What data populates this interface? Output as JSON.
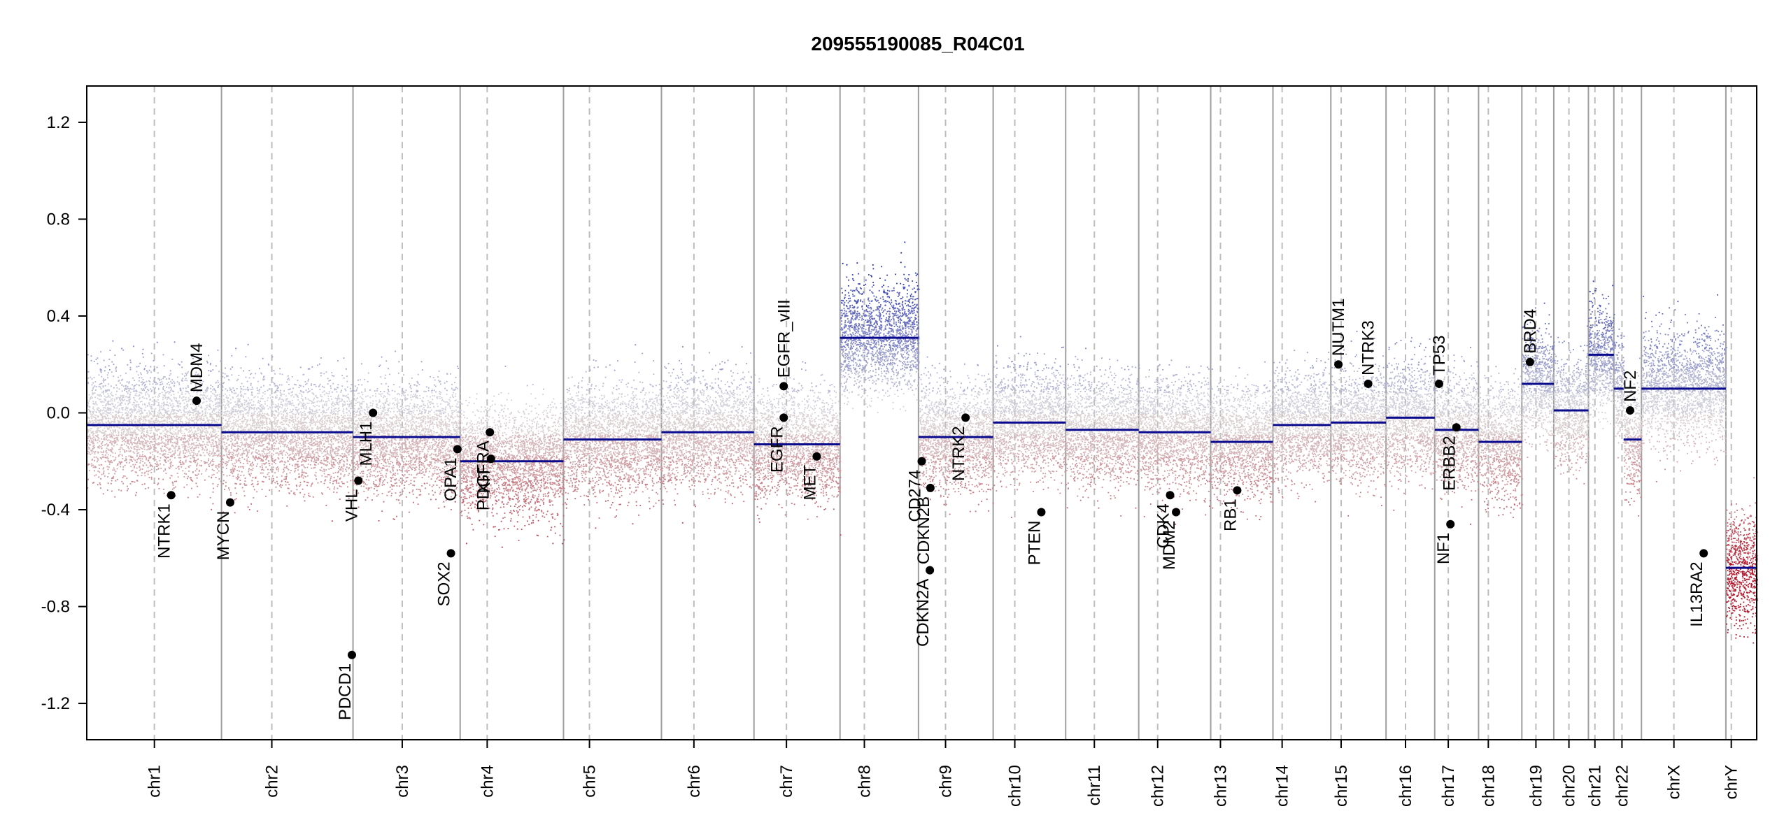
{
  "chart_data": {
    "type": "scatter",
    "title": "209555190085_R04C01",
    "xlabel": "",
    "ylabel": "",
    "ylim": [
      -1.35,
      1.35
    ],
    "grid": false,
    "yticks": [
      -1.2,
      -0.8,
      -0.4,
      0.0,
      0.4,
      0.8,
      1.2
    ],
    "ytick_labels": [
      "-1.2",
      "-0.8",
      "-0.4",
      "0.0",
      "0.4",
      "0.8",
      "1.2"
    ],
    "chromosomes": [
      {
        "name": "chr1",
        "start": 0,
        "end": 249,
        "centromere": 125
      },
      {
        "name": "chr2",
        "start": 249,
        "end": 492,
        "centromere": 93
      },
      {
        "name": "chr3",
        "start": 492,
        "end": 690,
        "centromere": 91
      },
      {
        "name": "chr4",
        "start": 690,
        "end": 881,
        "centromere": 50
      },
      {
        "name": "chr5",
        "start": 881,
        "end": 1062,
        "centromere": 48
      },
      {
        "name": "chr6",
        "start": 1062,
        "end": 1233,
        "centromere": 60
      },
      {
        "name": "chr7",
        "start": 1233,
        "end": 1392,
        "centromere": 60
      },
      {
        "name": "chr8",
        "start": 1392,
        "end": 1537,
        "centromere": 45
      },
      {
        "name": "chr9",
        "start": 1537,
        "end": 1675,
        "centromere": 50
      },
      {
        "name": "chr10",
        "start": 1675,
        "end": 1809,
        "centromere": 40
      },
      {
        "name": "chr11",
        "start": 1809,
        "end": 1944,
        "centromere": 53
      },
      {
        "name": "chr12",
        "start": 1944,
        "end": 2077,
        "centromere": 35
      },
      {
        "name": "chr13",
        "start": 2077,
        "end": 2192,
        "centromere": 18
      },
      {
        "name": "chr14",
        "start": 2192,
        "end": 2299,
        "centromere": 17
      },
      {
        "name": "chr15",
        "start": 2299,
        "end": 2401,
        "centromere": 19
      },
      {
        "name": "chr16",
        "start": 2401,
        "end": 2491,
        "centromere": 36
      },
      {
        "name": "chr17",
        "start": 2491,
        "end": 2572,
        "centromere": 25
      },
      {
        "name": "chr18",
        "start": 2572,
        "end": 2652,
        "centromere": 18
      },
      {
        "name": "chr19",
        "start": 2652,
        "end": 2711,
        "centromere": 26
      },
      {
        "name": "chr20",
        "start": 2711,
        "end": 2775,
        "centromere": 28
      },
      {
        "name": "chr21",
        "start": 2775,
        "end": 2822,
        "centromere": 12
      },
      {
        "name": "chr22",
        "start": 2822,
        "end": 2873,
        "centromere": 15
      },
      {
        "name": "chrX",
        "start": 2873,
        "end": 3029,
        "centromere": 60
      },
      {
        "name": "chrY",
        "start": 3029,
        "end": 3086,
        "centromere": 10
      }
    ],
    "segments": [
      {
        "chrom": "chr1",
        "start": 0,
        "end": 249,
        "value": -0.05
      },
      {
        "chrom": "chr2",
        "start": 249,
        "end": 492,
        "value": -0.08
      },
      {
        "chrom": "chr3",
        "start": 492,
        "end": 690,
        "value": -0.1
      },
      {
        "chrom": "chr4",
        "start": 690,
        "end": 881,
        "value": -0.2
      },
      {
        "chrom": "chr5",
        "start": 881,
        "end": 1062,
        "value": -0.11
      },
      {
        "chrom": "chr6",
        "start": 1062,
        "end": 1233,
        "value": -0.08
      },
      {
        "chrom": "chr7",
        "start": 1233,
        "end": 1392,
        "value": -0.13
      },
      {
        "chrom": "chr8",
        "start": 1392,
        "end": 1537,
        "value": 0.31
      },
      {
        "chrom": "chr9",
        "start": 1537,
        "end": 1675,
        "value": -0.1
      },
      {
        "chrom": "chr10",
        "start": 1675,
        "end": 1809,
        "value": -0.04
      },
      {
        "chrom": "chr11",
        "start": 1809,
        "end": 1944,
        "value": -0.07
      },
      {
        "chrom": "chr12",
        "start": 1944,
        "end": 2077,
        "value": -0.08
      },
      {
        "chrom": "chr13",
        "start": 2077,
        "end": 2192,
        "value": -0.12
      },
      {
        "chrom": "chr14",
        "start": 2192,
        "end": 2299,
        "value": -0.05
      },
      {
        "chrom": "chr15",
        "start": 2299,
        "end": 2401,
        "value": -0.04
      },
      {
        "chrom": "chr16",
        "start": 2401,
        "end": 2491,
        "value": -0.02
      },
      {
        "chrom": "chr17",
        "start": 2491,
        "end": 2572,
        "value": -0.07
      },
      {
        "chrom": "chr18",
        "start": 2572,
        "end": 2652,
        "value": -0.12
      },
      {
        "chrom": "chr19",
        "start": 2652,
        "end": 2711,
        "value": 0.12
      },
      {
        "chrom": "chr20",
        "start": 2711,
        "end": 2775,
        "value": 0.01
      },
      {
        "chrom": "chr21",
        "start": 2775,
        "end": 2822,
        "value": 0.24
      },
      {
        "chrom": "chr22",
        "start": 2822,
        "end": 2840,
        "value": 0.1
      },
      {
        "chrom": "chr22",
        "start": 2840,
        "end": 2873,
        "value": -0.11
      },
      {
        "chrom": "chrX",
        "start": 2873,
        "end": 3029,
        "value": 0.1
      },
      {
        "chrom": "chrY",
        "start": 3029,
        "end": 3086,
        "value": -0.64
      }
    ],
    "genes": [
      {
        "name": "MDM4",
        "x": 203,
        "value": 0.05,
        "label_side": "above"
      },
      {
        "name": "NTRK1",
        "x": 156,
        "value": -0.34,
        "label_side": "below"
      },
      {
        "name": "MYCN",
        "x": 265,
        "value": -0.37,
        "label_side": "below"
      },
      {
        "name": "PDCD1",
        "x": 490,
        "value": -1.0,
        "label_side": "below"
      },
      {
        "name": "VHL",
        "x": 502,
        "value": -0.28,
        "label_side": "below"
      },
      {
        "name": "MLH1",
        "x": 529,
        "value": 0.0,
        "label_side": "below"
      },
      {
        "name": "OPA1",
        "x": 685,
        "value": -0.15,
        "label_side": "below"
      },
      {
        "name": "SOX2",
        "x": 673,
        "value": -0.58,
        "label_side": "below"
      },
      {
        "name": "PDGFRA",
        "x": 745,
        "value": -0.08,
        "label_side": "below"
      },
      {
        "name": "KIT",
        "x": 747,
        "value": -0.19,
        "label_side": "below"
      },
      {
        "name": "EGFR",
        "x": 1288,
        "value": -0.02,
        "label_side": "below"
      },
      {
        "name": "EGFR_vIII",
        "x": 1288,
        "value": 0.11,
        "label_side": "above"
      },
      {
        "name": "MET",
        "x": 1349,
        "value": -0.18,
        "label_side": "below"
      },
      {
        "name": "CD274",
        "x": 1543,
        "value": -0.2,
        "label_side": "below"
      },
      {
        "name": "CDKN2A",
        "x": 1558,
        "value": -0.65,
        "label_side": "below"
      },
      {
        "name": "CDKN2B",
        "x": 1559,
        "value": -0.31,
        "label_side": "below"
      },
      {
        "name": "NTRK2",
        "x": 1624,
        "value": -0.02,
        "label_side": "below"
      },
      {
        "name": "PTEN",
        "x": 1764,
        "value": -0.41,
        "label_side": "below"
      },
      {
        "name": "CDK4",
        "x": 2002,
        "value": -0.34,
        "label_side": "below"
      },
      {
        "name": "MDM2",
        "x": 2013,
        "value": -0.41,
        "label_side": "below"
      },
      {
        "name": "RB1",
        "x": 2126,
        "value": -0.32,
        "label_side": "below"
      },
      {
        "name": "NUTM1",
        "x": 2313,
        "value": 0.2,
        "label_side": "above"
      },
      {
        "name": "NTRK3",
        "x": 2368,
        "value": 0.12,
        "label_side": "above"
      },
      {
        "name": "TP53",
        "x": 2499,
        "value": 0.12,
        "label_side": "above"
      },
      {
        "name": "NF1",
        "x": 2520,
        "value": -0.46,
        "label_side": "below"
      },
      {
        "name": "ERBB2",
        "x": 2531,
        "value": -0.06,
        "label_side": "below"
      },
      {
        "name": "BRD4",
        "x": 2667,
        "value": 0.21,
        "label_side": "above"
      },
      {
        "name": "NF2",
        "x": 2852,
        "value": 0.01,
        "label_side": "above"
      },
      {
        "name": "IL13RA2",
        "x": 2988,
        "value": -0.58,
        "label_side": "below"
      }
    ]
  }
}
